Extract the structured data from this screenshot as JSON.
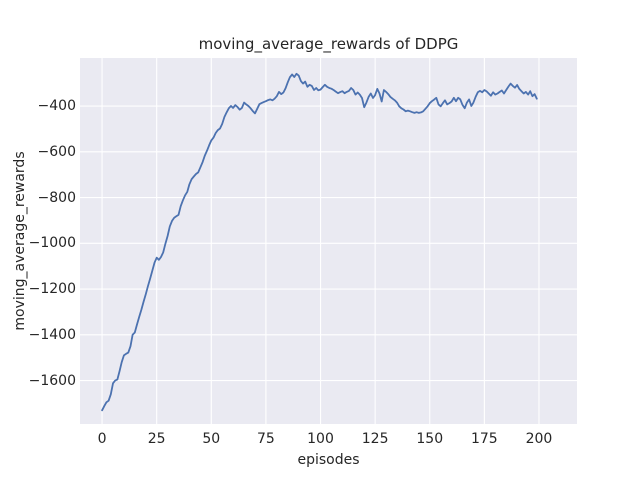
{
  "figure": {
    "background": "#ffffff"
  },
  "chart_data": {
    "type": "line",
    "title": "moving_average_rewards of DDPG",
    "xlabel": "episodes",
    "ylabel": "moving_average_rewards",
    "legend": "none",
    "grid": true,
    "x_start": 0,
    "x_step": 1,
    "xlim": [
      -10.1,
      217.4
    ],
    "ylim": [
      -1790,
      -190
    ],
    "xticks": [
      0,
      25,
      50,
      75,
      100,
      125,
      150,
      175,
      200
    ],
    "xtick_labels": [
      "0",
      "25",
      "50",
      "75",
      "100",
      "125",
      "150",
      "175",
      "200"
    ],
    "yticks": [
      -400,
      -600,
      -800,
      -1000,
      -1200,
      -1400,
      -1600
    ],
    "ytick_labels": [
      "−400",
      "−600",
      "−800",
      "−1000",
      "−1200",
      "−1400",
      "−1600"
    ],
    "series": [
      {
        "name": "moving_average_rewards",
        "values": [
          -1730,
          -1712,
          -1695,
          -1688,
          -1660,
          -1612,
          -1600,
          -1595,
          -1560,
          -1520,
          -1490,
          -1483,
          -1478,
          -1450,
          -1400,
          -1390,
          -1355,
          -1322,
          -1290,
          -1255,
          -1222,
          -1188,
          -1155,
          -1120,
          -1085,
          -1063,
          -1072,
          -1060,
          -1040,
          -1002,
          -968,
          -926,
          -902,
          -888,
          -882,
          -876,
          -838,
          -812,
          -790,
          -775,
          -742,
          -720,
          -708,
          -697,
          -690,
          -668,
          -645,
          -618,
          -596,
          -572,
          -550,
          -538,
          -518,
          -505,
          -498,
          -478,
          -448,
          -428,
          -410,
          -400,
          -408,
          -396,
          -404,
          -416,
          -408,
          -385,
          -393,
          -400,
          -410,
          -422,
          -432,
          -412,
          -392,
          -387,
          -383,
          -379,
          -374,
          -371,
          -375,
          -368,
          -357,
          -338,
          -348,
          -341,
          -322,
          -296,
          -274,
          -262,
          -273,
          -259,
          -267,
          -291,
          -302,
          -293,
          -316,
          -307,
          -312,
          -330,
          -321,
          -331,
          -328,
          -317,
          -307,
          -316,
          -321,
          -324,
          -330,
          -337,
          -344,
          -339,
          -335,
          -344,
          -338,
          -334,
          -321,
          -330,
          -350,
          -341,
          -350,
          -365,
          -405,
          -385,
          -360,
          -345,
          -365,
          -352,
          -325,
          -345,
          -380,
          -330,
          -338,
          -348,
          -360,
          -368,
          -375,
          -385,
          -401,
          -410,
          -415,
          -423,
          -420,
          -423,
          -427,
          -430,
          -427,
          -430,
          -428,
          -423,
          -412,
          -401,
          -387,
          -379,
          -372,
          -364,
          -393,
          -401,
          -387,
          -375,
          -393,
          -387,
          -380,
          -364,
          -379,
          -364,
          -371,
          -395,
          -410,
          -385,
          -371,
          -400,
          -385,
          -360,
          -340,
          -334,
          -340,
          -330,
          -336,
          -345,
          -355,
          -340,
          -350,
          -345,
          -338,
          -332,
          -345,
          -330,
          -315,
          -302,
          -312,
          -320,
          -308,
          -325,
          -335,
          -345,
          -338,
          -350,
          -335,
          -357,
          -348,
          -368
        ]
      }
    ],
    "style": {
      "line_color": "#4C72B0",
      "plot_bg": "#EAEAF2",
      "grid_color": "#FFFFFF",
      "text_color": "#262626",
      "figure_bg": "#FFFFFF"
    }
  }
}
